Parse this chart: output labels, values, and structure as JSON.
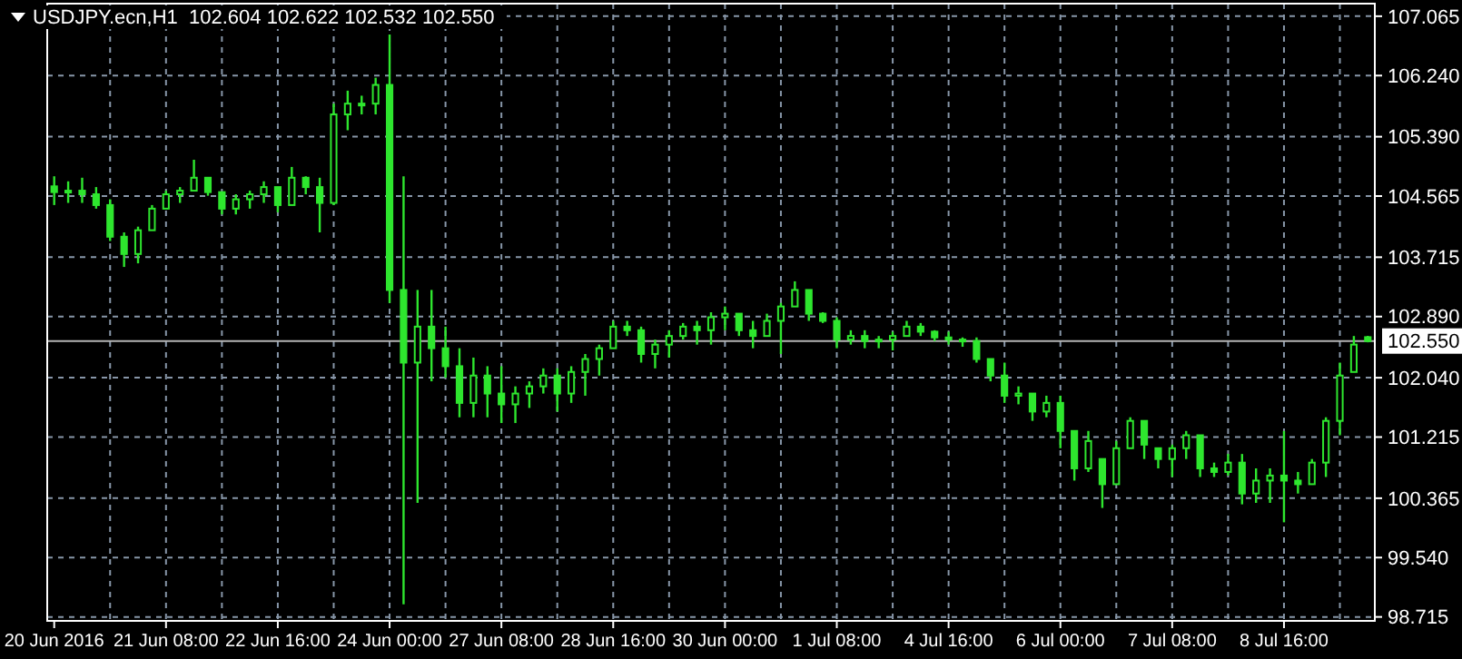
{
  "chart_data": {
    "type": "candlestick",
    "title": "USDJPY.ecn,H1  102.604 102.622 102.532 102.550",
    "categories": [
      "20 Jun 2016",
      null,
      null,
      null,
      null,
      null,
      null,
      null,
      "21 Jun 08:00",
      null,
      null,
      null,
      null,
      null,
      null,
      null,
      "22 Jun 16:00",
      null,
      null,
      null,
      null,
      null,
      null,
      null,
      "24 Jun 00:00",
      null,
      null,
      null,
      null,
      null,
      null,
      null,
      "27 Jun 08:00",
      null,
      null,
      null,
      null,
      null,
      null,
      null,
      "28 Jun 16:00",
      null,
      null,
      null,
      null,
      null,
      null,
      null,
      "30 Jun 00:00",
      null,
      null,
      null,
      null,
      null,
      null,
      null,
      "1 Jul 08:00",
      null,
      null,
      null,
      null,
      null,
      null,
      null,
      "4 Jul 16:00",
      null,
      null,
      null,
      null,
      null,
      null,
      null,
      "6 Jul 00:00",
      null,
      null,
      null,
      null,
      null,
      null,
      null,
      "7 Jul 08:00",
      null,
      null,
      null,
      null,
      null,
      null,
      null,
      "8 Jul 16:00",
      null,
      null,
      null,
      null,
      null,
      null
    ],
    "ohlc": [
      [
        104.7,
        104.84,
        104.44,
        104.62
      ],
      [
        104.62,
        104.77,
        104.47,
        104.64
      ],
      [
        104.64,
        104.82,
        104.47,
        104.59
      ],
      [
        104.59,
        104.69,
        104.39,
        104.44
      ],
      [
        104.44,
        104.52,
        103.94,
        104.0
      ],
      [
        104.0,
        104.06,
        103.58,
        103.76
      ],
      [
        103.76,
        104.14,
        103.63,
        104.09
      ],
      [
        104.09,
        104.44,
        104.09,
        104.39
      ],
      [
        104.39,
        104.64,
        104.39,
        104.59
      ],
      [
        104.59,
        104.69,
        104.47,
        104.64
      ],
      [
        104.64,
        105.07,
        104.64,
        104.82
      ],
      [
        104.82,
        104.82,
        104.57,
        104.62
      ],
      [
        104.62,
        104.62,
        104.31,
        104.39
      ],
      [
        104.39,
        104.59,
        104.31,
        104.52
      ],
      [
        104.52,
        104.64,
        104.39,
        104.59
      ],
      [
        104.59,
        104.77,
        104.47,
        104.69
      ],
      [
        104.69,
        104.69,
        104.34,
        104.44
      ],
      [
        104.44,
        104.97,
        104.44,
        104.82
      ],
      [
        104.82,
        104.84,
        104.59,
        104.69
      ],
      [
        104.69,
        104.82,
        104.06,
        104.47
      ],
      [
        104.47,
        105.85,
        104.44,
        105.7
      ],
      [
        105.7,
        106.03,
        105.48,
        105.85
      ],
      [
        105.85,
        105.96,
        105.7,
        105.85
      ],
      [
        105.85,
        106.21,
        105.7,
        106.11
      ],
      [
        106.11,
        106.81,
        103.08,
        103.26
      ],
      [
        103.26,
        104.84,
        98.89,
        102.25
      ],
      [
        102.25,
        103.26,
        100.3,
        102.75
      ],
      [
        102.75,
        103.26,
        101.99,
        102.45
      ],
      [
        102.45,
        102.75,
        102.04,
        102.2
      ],
      [
        102.2,
        102.45,
        101.49,
        101.69
      ],
      [
        101.69,
        102.32,
        101.49,
        102.07
      ],
      [
        102.07,
        102.2,
        101.49,
        101.82
      ],
      [
        101.82,
        102.2,
        101.41,
        101.67
      ],
      [
        101.67,
        101.92,
        101.41,
        101.82
      ],
      [
        101.82,
        101.99,
        101.62,
        101.92
      ],
      [
        101.92,
        102.17,
        101.82,
        102.07
      ],
      [
        102.07,
        102.17,
        101.57,
        101.82
      ],
      [
        101.82,
        102.2,
        101.69,
        102.12
      ],
      [
        102.12,
        102.37,
        101.79,
        102.3
      ],
      [
        102.3,
        102.5,
        102.07,
        102.45
      ],
      [
        102.45,
        102.83,
        102.45,
        102.75
      ],
      [
        102.75,
        102.83,
        102.62,
        102.7
      ],
      [
        102.7,
        102.75,
        102.25,
        102.37
      ],
      [
        102.37,
        102.57,
        102.17,
        102.5
      ],
      [
        102.5,
        102.7,
        102.32,
        102.62
      ],
      [
        102.62,
        102.8,
        102.57,
        102.75
      ],
      [
        102.75,
        102.83,
        102.5,
        102.7
      ],
      [
        102.7,
        102.95,
        102.5,
        102.88
      ],
      [
        102.88,
        103.03,
        102.7,
        102.93
      ],
      [
        102.93,
        102.93,
        102.62,
        102.7
      ],
      [
        102.7,
        102.83,
        102.45,
        102.62
      ],
      [
        102.62,
        102.93,
        102.62,
        102.83
      ],
      [
        102.83,
        103.08,
        102.37,
        103.03
      ],
      [
        103.03,
        103.38,
        103.03,
        103.26
      ],
      [
        103.26,
        103.26,
        102.83,
        102.93
      ],
      [
        102.93,
        102.95,
        102.8,
        102.83
      ],
      [
        102.83,
        102.88,
        102.45,
        102.57
      ],
      [
        102.57,
        102.7,
        102.5,
        102.62
      ],
      [
        102.62,
        102.7,
        102.45,
        102.55
      ],
      [
        102.55,
        102.62,
        102.45,
        102.57
      ],
      [
        102.57,
        102.68,
        102.42,
        102.62
      ],
      [
        102.62,
        102.83,
        102.62,
        102.75
      ],
      [
        102.75,
        102.8,
        102.62,
        102.68
      ],
      [
        102.68,
        102.7,
        102.55,
        102.6
      ],
      [
        102.6,
        102.68,
        102.5,
        102.57
      ],
      [
        102.57,
        102.6,
        102.47,
        102.55
      ],
      [
        102.55,
        102.6,
        102.25,
        102.3
      ],
      [
        102.3,
        102.3,
        101.99,
        102.07
      ],
      [
        102.07,
        102.25,
        101.69,
        101.79
      ],
      [
        101.79,
        101.92,
        101.67,
        101.82
      ],
      [
        101.82,
        101.82,
        101.44,
        101.57
      ],
      [
        101.57,
        101.79,
        101.49,
        101.69
      ],
      [
        101.69,
        101.79,
        101.06,
        101.3
      ],
      [
        101.3,
        101.31,
        100.61,
        100.78
      ],
      [
        100.78,
        101.3,
        100.73,
        101.16
      ],
      [
        100.91,
        100.91,
        100.23,
        100.56
      ],
      [
        100.56,
        101.16,
        100.56,
        101.06
      ],
      [
        101.06,
        101.49,
        101.06,
        101.44
      ],
      [
        101.44,
        101.44,
        100.91,
        101.11
      ],
      [
        101.06,
        101.06,
        100.78,
        100.91
      ],
      [
        100.91,
        101.11,
        100.66,
        101.06
      ],
      [
        101.06,
        101.3,
        100.91,
        101.24
      ],
      [
        101.24,
        101.24,
        100.66,
        100.78
      ],
      [
        100.78,
        100.86,
        100.66,
        100.73
      ],
      [
        100.73,
        100.98,
        100.68,
        100.86
      ],
      [
        100.86,
        100.98,
        100.28,
        100.43
      ],
      [
        100.43,
        100.78,
        100.3,
        100.61
      ],
      [
        100.61,
        100.78,
        100.3,
        100.68
      ],
      [
        100.68,
        101.3,
        100.03,
        100.61
      ],
      [
        100.61,
        100.73,
        100.43,
        100.56
      ],
      [
        100.56,
        100.91,
        100.56,
        100.86
      ],
      [
        100.86,
        101.49,
        100.66,
        101.44
      ],
      [
        101.44,
        102.25,
        101.24,
        102.07
      ],
      [
        102.12,
        102.62,
        102.12,
        102.5
      ],
      [
        102.604,
        102.622,
        102.532,
        102.55
      ]
    ],
    "color": "#2ee62e",
    "ylim": [
      98.66,
      107.24
    ],
    "yticks": [
      107.065,
      {
        "value": 106.24,
        "label": "106.240"
      },
      {
        "value": 105.39,
        "label": "105.390"
      },
      104.565,
      103.715,
      {
        "value": 102.89,
        "label": "102.890"
      },
      {
        "value": 102.04,
        "label": "102.040"
      },
      101.215,
      100.365,
      {
        "value": 99.54,
        "label": "99.540"
      },
      98.715
    ],
    "ref_lines": [
      {
        "axis": "y",
        "value": 102.55,
        "label": "102.550",
        "color": "#b4b4b4"
      }
    ],
    "grid": true
  }
}
